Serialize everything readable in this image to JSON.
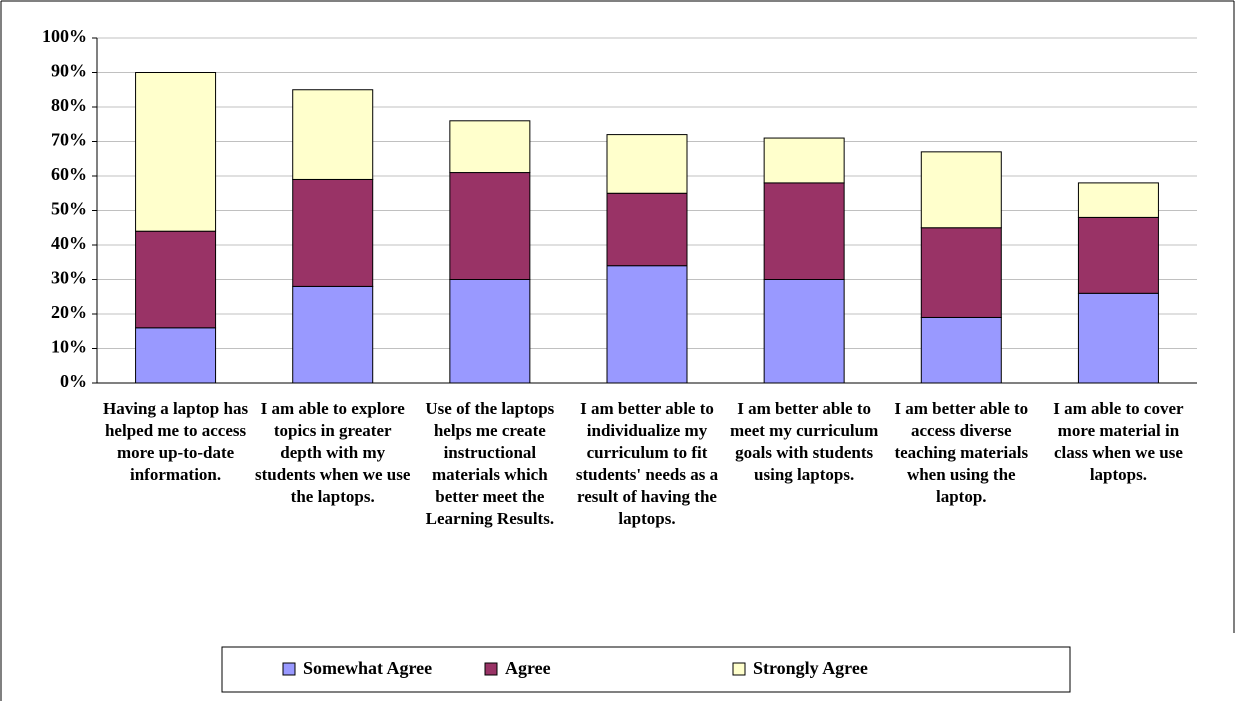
{
  "chart_data": {
    "type": "stacked_bar",
    "categories": [
      "Having a laptop has helped me to access more up-to-date information.",
      "I am able to explore topics in greater depth with my students when we use the laptops.",
      "Use of the laptops helps me create instructional materials which better meet the Learning Results.",
      "I am better able to individualize my curriculum to fit students' needs as a result of having the laptops.",
      "I am better able to meet my curriculum goals with students using laptops.",
      "I am better able to access diverse teaching materials when using the laptop.",
      "I am able to cover more material in class when we use laptops."
    ],
    "series": [
      {
        "name": "Somewhat Agree",
        "color": "#9999ff",
        "values": [
          16,
          28,
          30,
          34,
          30,
          19,
          26
        ]
      },
      {
        "name": "Agree",
        "color": "#993366",
        "values": [
          28,
          31,
          31,
          21,
          28,
          26,
          22
        ]
      },
      {
        "name": "Strongly Agree",
        "color": "#ffffcc",
        "values": [
          46,
          26,
          15,
          17,
          13,
          22,
          10
        ]
      }
    ],
    "ylim": [
      0,
      100
    ],
    "yticks": [
      {
        "value": 0,
        "label": "0%"
      },
      {
        "value": 10,
        "label": "10%"
      },
      {
        "value": 20,
        "label": "20%"
      },
      {
        "value": 30,
        "label": "30%"
      },
      {
        "value": 40,
        "label": "40%"
      },
      {
        "value": 50,
        "label": "50%"
      },
      {
        "value": 60,
        "label": "60%"
      },
      {
        "value": 70,
        "label": "70%"
      },
      {
        "value": 80,
        "label": "80%"
      },
      {
        "value": 90,
        "label": "90%"
      },
      {
        "value": 100,
        "label": "100%"
      }
    ],
    "grid": true,
    "legend": "bottom"
  }
}
